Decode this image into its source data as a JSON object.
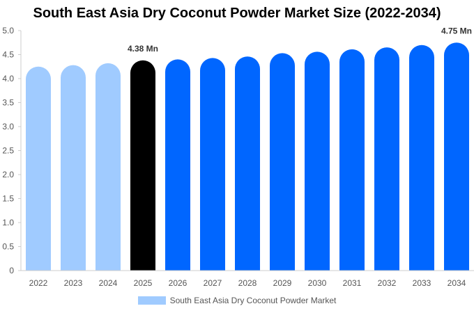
{
  "chart_data": {
    "type": "bar",
    "title": "South East Asia Dry Coconut Powder Market Size (2022-2034)",
    "categories": [
      "2022",
      "2023",
      "2024",
      "2025",
      "2026",
      "2027",
      "2028",
      "2029",
      "2030",
      "2031",
      "2032",
      "2033",
      "2034"
    ],
    "series": [
      {
        "name": "South East Asia Dry Coconut Powder Market",
        "values": [
          4.25,
          4.28,
          4.32,
          4.38,
          4.4,
          4.43,
          4.46,
          4.53,
          4.56,
          4.61,
          4.65,
          4.7,
          4.75
        ]
      }
    ],
    "bar_colors": [
      "#a0cbff",
      "#a0cbff",
      "#a0cbff",
      "#000000",
      "#0066ff",
      "#0066ff",
      "#0066ff",
      "#0066ff",
      "#0066ff",
      "#0066ff",
      "#0066ff",
      "#0066ff",
      "#0066ff"
    ],
    "data_labels": [
      {
        "index": 3,
        "text": "4.38 Mn"
      },
      {
        "index": 12,
        "text": "4.75 Mn"
      }
    ],
    "y_ticks": [
      "0",
      "0.5",
      "1.0",
      "1.5",
      "2.0",
      "2.5",
      "3.0",
      "3.5",
      "4.0",
      "4.5",
      "5.0"
    ],
    "ylim": [
      0,
      5
    ],
    "grid": false,
    "legend_position": "bottom",
    "legend_color": "#a0cbff"
  }
}
